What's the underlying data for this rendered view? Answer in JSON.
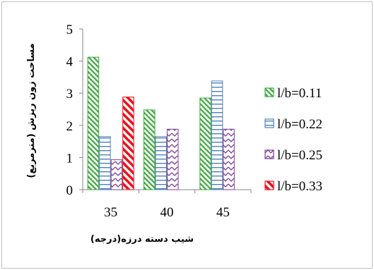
{
  "chart_data": {
    "type": "bar",
    "title": "",
    "xlabel": "شیب دسته درزه(درجه)",
    "ylabel": "مساحت زون ریزش (مترمربع)",
    "categories": [
      "35",
      "40",
      "45"
    ],
    "ylim": [
      0,
      5
    ],
    "yticks": [
      "0",
      "1",
      "2",
      "3",
      "4",
      "5"
    ],
    "grid": false,
    "legend_position": "right",
    "series": [
      {
        "name": "l/b=0.11",
        "values": [
          4.12,
          2.48,
          2.85
        ],
        "color": "#3aa63a",
        "pattern": "diagonal-hatch"
      },
      {
        "name": "l/b=0.22",
        "values": [
          1.65,
          1.65,
          3.38
        ],
        "color": "#4f81bd",
        "pattern": "horizontal-lines"
      },
      {
        "name": "l/b=0.25",
        "values": [
          0.93,
          1.88,
          1.88
        ],
        "color": "#7d3c98",
        "pattern": "zigzag"
      },
      {
        "name": "l/b=0.33",
        "values": [
          2.88,
          null,
          null
        ],
        "color": "#e8131f",
        "pattern": "wide-diagonal-hatch"
      }
    ]
  }
}
